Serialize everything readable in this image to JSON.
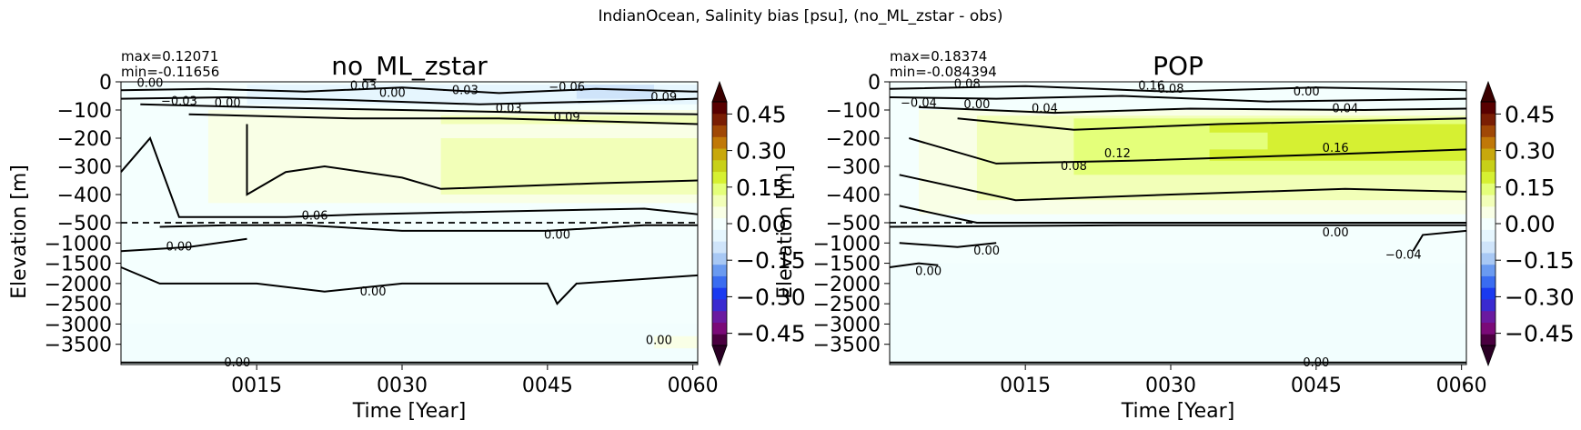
{
  "suptitle": "IndianOcean, Salinity bias [psu], (no_ML_zstar - obs)",
  "chart_data": [
    {
      "type": "heatmap",
      "title": "no_ML_zstar",
      "stats": [
        "max=0.12071",
        "min=-0.11656"
      ],
      "xlabel": "Time [Year]",
      "ylabel": "Elevation [m]",
      "xticks": [
        "0015",
        "0030",
        "0045",
        "0060"
      ],
      "xtick_values": [
        15,
        30,
        45,
        60
      ],
      "xlim": [
        1,
        60.5
      ],
      "yticks_upper": [
        "0",
        "−100",
        "−200",
        "−300",
        "−400",
        "−500"
      ],
      "yticks_lower": [
        "−1000",
        "−1500",
        "−2000",
        "−2500",
        "−3000",
        "−3500"
      ],
      "ylim_upper": [
        -500,
        0
      ],
      "ylim_lower": [
        -4000,
        -500
      ],
      "reference_line": -500,
      "contour_labels": [
        {
          "text": "0.00",
          "x": 4,
          "y": -5
        },
        {
          "text": "−0.03",
          "x": 7,
          "y": -70
        },
        {
          "text": "0.00",
          "x": 12,
          "y": -75
        },
        {
          "text": "0.03",
          "x": 26,
          "y": -15
        },
        {
          "text": "0.00",
          "x": 29,
          "y": -40
        },
        {
          "text": "−0.03",
          "x": 36,
          "y": -30
        },
        {
          "text": "−0.06",
          "x": 47,
          "y": -20
        },
        {
          "text": "0.09",
          "x": 57,
          "y": -55
        },
        {
          "text": "0.03",
          "x": 41,
          "y": -95
        },
        {
          "text": "0.09",
          "x": 47,
          "y": -125
        },
        {
          "text": "0.06",
          "x": 21,
          "y": -475
        },
        {
          "text": "0.00",
          "x": 7,
          "y": -1100
        },
        {
          "text": "0.00",
          "x": 46,
          "y": -800
        },
        {
          "text": "0.00",
          "x": 27,
          "y": -2200
        },
        {
          "text": "0.00",
          "x": 13,
          "y": -3950
        },
        {
          "text": "0.00",
          "x": 56.5,
          "y": -3400
        }
      ]
    },
    {
      "type": "heatmap",
      "title": "POP",
      "stats": [
        "max=0.18374",
        "min=-0.084394"
      ],
      "xlabel": "Time [Year]",
      "ylabel": "Elevation [m]",
      "xticks": [
        "0015",
        "0030",
        "0045",
        "0060"
      ],
      "xtick_values": [
        15,
        30,
        45,
        60
      ],
      "xlim": [
        1,
        60.5
      ],
      "yticks_upper": [
        "0",
        "−100",
        "−200",
        "−300",
        "−400",
        "−500"
      ],
      "yticks_lower": [
        "−1000",
        "−1500",
        "−2000",
        "−2500",
        "−3000",
        "−3500"
      ],
      "ylim_upper": [
        -500,
        0
      ],
      "ylim_lower": [
        -4000,
        -500
      ],
      "reference_line": -500,
      "contour_labels": [
        {
          "text": "0.08",
          "x": 9,
          "y": -8
        },
        {
          "text": "0.16",
          "x": 28,
          "y": -15
        },
        {
          "text": "0.08",
          "x": 30,
          "y": -25
        },
        {
          "text": "0.00",
          "x": 44,
          "y": -35
        },
        {
          "text": "−0.04",
          "x": 4,
          "y": -75
        },
        {
          "text": "0.00",
          "x": 10,
          "y": -80
        },
        {
          "text": "0.04",
          "x": 17,
          "y": -95
        },
        {
          "text": "0.04",
          "x": 48,
          "y": -95
        },
        {
          "text": "0.12",
          "x": 24.5,
          "y": -255
        },
        {
          "text": "0.16",
          "x": 47,
          "y": -235
        },
        {
          "text": "0.08",
          "x": 20,
          "y": -300
        },
        {
          "text": "0.00",
          "x": 47,
          "y": -750
        },
        {
          "text": "0.00",
          "x": 11,
          "y": -1200
        },
        {
          "text": "0.00",
          "x": 5,
          "y": -1700
        },
        {
          "text": "−0.04",
          "x": 54,
          "y": -1300
        },
        {
          "text": "0.00",
          "x": 45,
          "y": -3950
        }
      ]
    }
  ],
  "colorbar": {
    "ticks": [
      "0.45",
      "0.30",
      "0.15",
      "0.00",
      "−0.15",
      "−0.30",
      "−0.45"
    ],
    "tick_values": [
      0.45,
      0.3,
      0.15,
      0.0,
      -0.15,
      -0.3,
      -0.45
    ],
    "range": [
      -0.5,
      0.5
    ],
    "extend": "both",
    "colors": [
      "#4a0040",
      "#7a0a78",
      "#6a1aa0",
      "#3a2ad0",
      "#1a3af0",
      "#3a6cf0",
      "#6a9af0",
      "#a8c8f4",
      "#cfe4fa",
      "#e6f6fe",
      "#f4fffe",
      "#f9ffe6",
      "#f2ffb8",
      "#e4ff7a",
      "#d6f032",
      "#c8d018",
      "#c8a80c",
      "#c07808",
      "#a04806",
      "#7a1e04",
      "#580000"
    ],
    "over_color": "#3a0000",
    "under_color": "#2a0024"
  }
}
